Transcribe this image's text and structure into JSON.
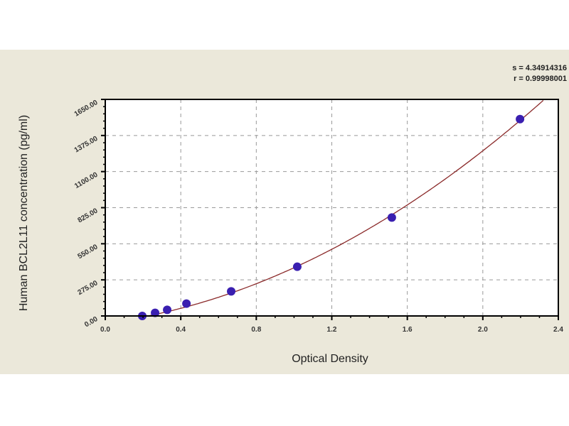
{
  "chart_data": {
    "type": "scatter",
    "title": "",
    "xlabel": "Optical Density",
    "ylabel": "Human BCL2L11 concentration (pg/ml)",
    "xlim": [
      0.0,
      2.4
    ],
    "ylim": [
      0,
      1650
    ],
    "grid": true,
    "xticks": [
      "0.0",
      "0.4",
      "0.8",
      "1.2",
      "1.6",
      "2.0",
      "2.4"
    ],
    "xtick_values": [
      0.0,
      0.4,
      0.8,
      1.2,
      1.6,
      2.0,
      2.4
    ],
    "yticks": [
      "0.00",
      "275.00",
      "550.00",
      "825.00",
      "1100.00",
      "1375.00",
      "1650.00"
    ],
    "ytick_values": [
      0,
      275,
      550,
      825,
      1100,
      1375,
      1650
    ],
    "points": {
      "x": [
        0.196,
        0.264,
        0.328,
        0.43,
        0.667,
        1.017,
        1.518,
        2.197
      ],
      "y": [
        0,
        23.44,
        46.88,
        93.75,
        187.5,
        375,
        750,
        1500
      ]
    },
    "fit_curve": {
      "type": "polynomial",
      "coefficients": [
        -54.4,
        187.5,
        234.4
      ]
    },
    "stats": {
      "s": "s = 4.34914316",
      "r": "r = 0.99998001"
    },
    "colors": {
      "points": "#3a1fb0",
      "curve": "#8b2a2a",
      "background": "#ebe8da"
    }
  }
}
